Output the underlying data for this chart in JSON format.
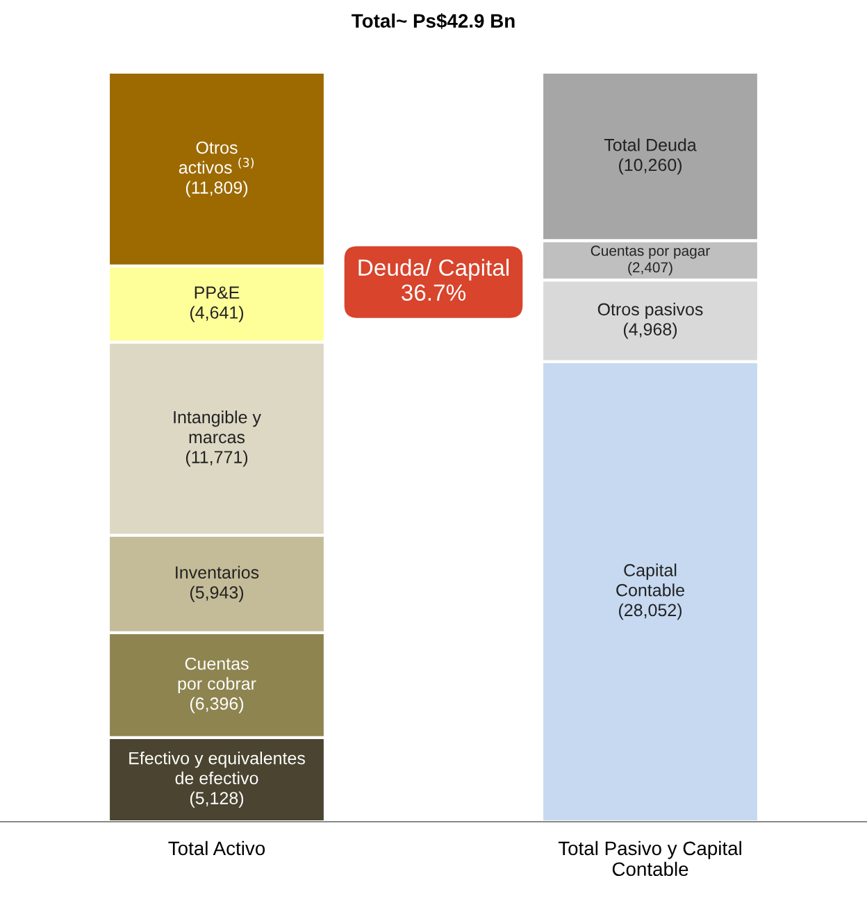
{
  "chart_data": {
    "type": "bar",
    "stacked": true,
    "title": "Total~ Ps$42.9 Bn",
    "categories": [
      "Total Activo",
      "Total Pasivo y Capital\nContable"
    ],
    "series": [
      {
        "name": "Efectivo y equivalentes\nde efectivo",
        "color": "#4a4430",
        "values": [
          5128,
          null
        ],
        "value_labels": [
          "(5,128)",
          null
        ]
      },
      {
        "name": "Cuentas\npor cobrar",
        "color": "#8e8450",
        "values": [
          6396,
          null
        ],
        "value_labels": [
          "(6,396)",
          null
        ]
      },
      {
        "name": "Inventarios",
        "color": "#c4bc98",
        "values": [
          5943,
          null
        ],
        "value_labels": [
          "(5,943)",
          null
        ]
      },
      {
        "name": "Intangible y\nmarcas",
        "color": "#ddd8c4",
        "values": [
          11771,
          null
        ],
        "value_labels": [
          "(11,771)",
          null
        ]
      },
      {
        "name": "PP&E",
        "color": "#ffff99",
        "values": [
          4641,
          null
        ],
        "value_labels": [
          "(4,641)",
          null
        ]
      },
      {
        "name": "Otros\nactivos $^{(3)}$",
        "color": "#9c6a00",
        "values": [
          11809,
          null
        ],
        "value_labels": [
          "(11,809)",
          null
        ]
      },
      {
        "name": "Capital\nContable",
        "color": "#c6d9f0",
        "values": [
          null,
          28052
        ],
        "value_labels": [
          null,
          "(28,052)"
        ]
      },
      {
        "name": "Otros pasivos",
        "color": "#d9d9d9",
        "values": [
          null,
          4968
        ],
        "value_labels": [
          null,
          "(4,968)"
        ]
      },
      {
        "name": "Cuentas por pagar",
        "color": "#bfbfbf",
        "values": [
          null,
          2407
        ],
        "value_labels": [
          null,
          "(2,407)"
        ]
      },
      {
        "name": "Total Deuda",
        "color": "#a6a6a6",
        "values": [
          null,
          10260
        ],
        "value_labels": [
          null,
          "(10,260)"
        ]
      }
    ],
    "annotations": [
      "Deuda/ Capital\n36.7%"
    ],
    "legend": false,
    "grid": false
  }
}
